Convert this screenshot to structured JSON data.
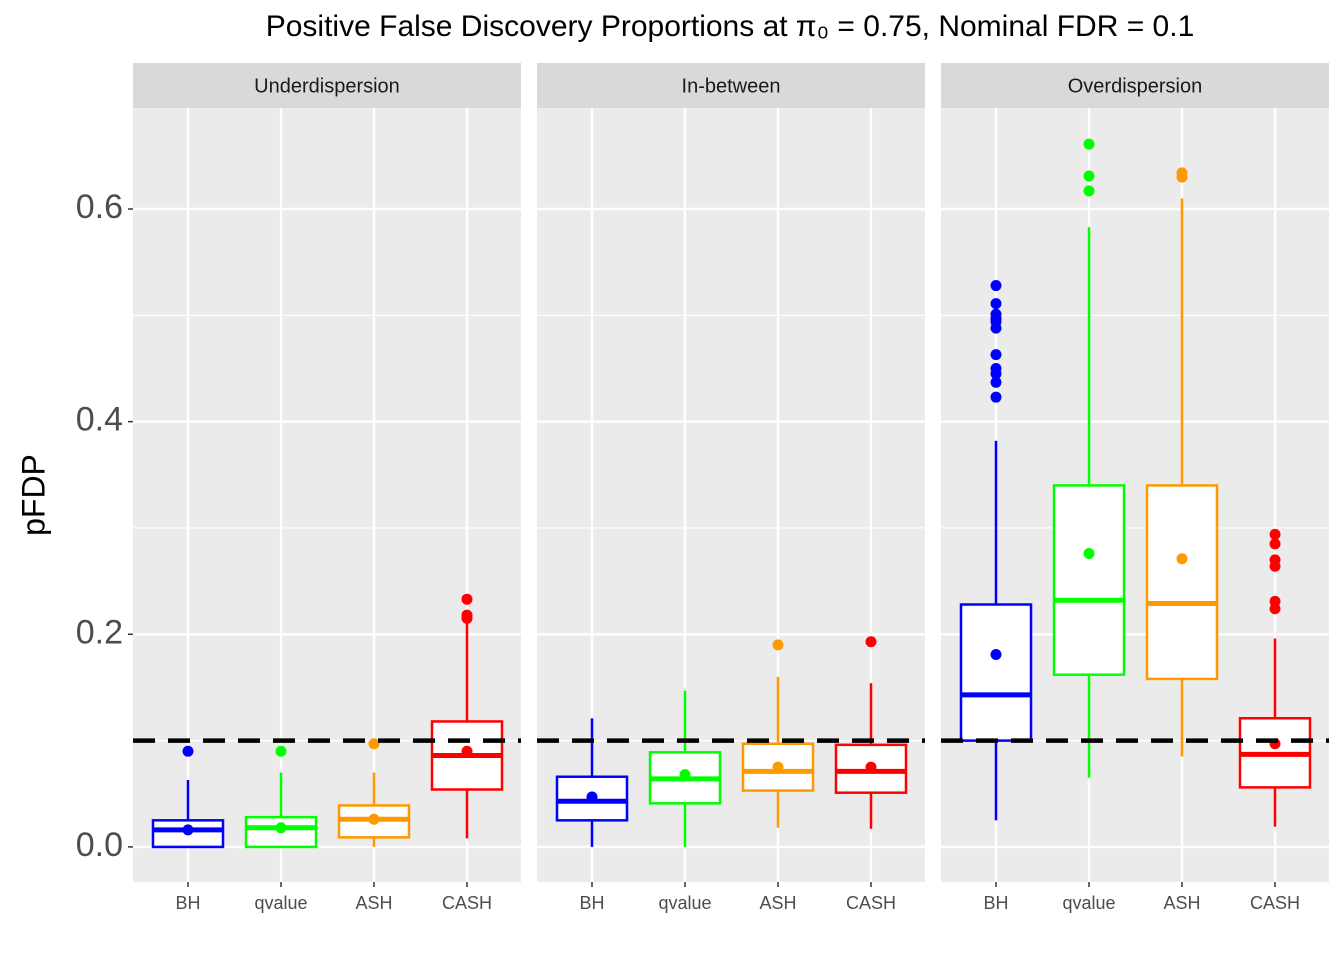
{
  "chart_data": {
    "type": "box",
    "title": "Positive False Discovery Proportions at π₀ = 0.75, Nominal FDR = 0.1",
    "ylabel": "pFDP",
    "ylim": [
      -0.033,
      0.695
    ],
    "yticks": [
      {
        "value": 0,
        "label": "0.0"
      },
      {
        "value": 0.2,
        "label": "0.2"
      },
      {
        "value": 0.4,
        "label": "0.4"
      },
      {
        "value": 0.6,
        "label": "0.6"
      }
    ],
    "minor_yticks": [
      0.1,
      0.3,
      0.5
    ],
    "grid": true,
    "hline": 0.1,
    "categories": [
      "BH",
      "qvalue",
      "ASH",
      "CASH"
    ],
    "colors": [
      "#0000ff",
      "#00ff00",
      "#ff9900",
      "#ff0000"
    ],
    "panels": [
      {
        "name": "Underdispersion",
        "boxes": [
          {
            "low": 0,
            "q1": 0,
            "median": 0.016,
            "q3": 0.025,
            "high": 0.063,
            "mean": 0.016,
            "outliers": [
              0.09
            ]
          },
          {
            "low": 0,
            "q1": 0,
            "median": 0.018,
            "q3": 0.028,
            "high": 0.07,
            "mean": 0.018,
            "outliers": [
              0.09
            ]
          },
          {
            "low": 0,
            "q1": 0.009,
            "median": 0.026,
            "q3": 0.039,
            "high": 0.07,
            "mean": 0.026,
            "outliers": [
              0.097
            ]
          },
          {
            "low": 0.008,
            "q1": 0.054,
            "median": 0.086,
            "q3": 0.118,
            "high": 0.213,
            "mean": 0.09,
            "outliers": [
              0.233,
              0.218,
              0.215
            ]
          }
        ]
      },
      {
        "name": "In-between",
        "boxes": [
          {
            "low": 0,
            "q1": 0.025,
            "median": 0.043,
            "q3": 0.066,
            "high": 0.121,
            "mean": 0.047,
            "outliers": []
          },
          {
            "low": 0,
            "q1": 0.041,
            "median": 0.064,
            "q3": 0.089,
            "high": 0.147,
            "mean": 0.068,
            "outliers": []
          },
          {
            "low": 0.018,
            "q1": 0.053,
            "median": 0.071,
            "q3": 0.097,
            "high": 0.16,
            "mean": 0.075,
            "outliers": [
              0.19
            ]
          },
          {
            "low": 0.017,
            "q1": 0.051,
            "median": 0.071,
            "q3": 0.096,
            "high": 0.154,
            "mean": 0.075,
            "outliers": [
              0.193
            ]
          }
        ]
      },
      {
        "name": "Overdispersion",
        "boxes": [
          {
            "low": 0.025,
            "q1": 0.1,
            "median": 0.143,
            "q3": 0.228,
            "high": 0.382,
            "mean": 0.181,
            "outliers": [
              0.528,
              0.511,
              0.501,
              0.497,
              0.494,
              0.488,
              0.463,
              0.45,
              0.445,
              0.437,
              0.423
            ]
          },
          {
            "low": 0.065,
            "q1": 0.162,
            "median": 0.232,
            "q3": 0.34,
            "high": 0.583,
            "mean": 0.276,
            "outliers": [
              0.661,
              0.631,
              0.617
            ]
          },
          {
            "low": 0.085,
            "q1": 0.158,
            "median": 0.229,
            "q3": 0.34,
            "high": 0.61,
            "mean": 0.271,
            "outliers": [
              0.634,
              0.63
            ]
          },
          {
            "low": 0.019,
            "q1": 0.056,
            "median": 0.087,
            "q3": 0.121,
            "high": 0.196,
            "mean": 0.097,
            "outliers": [
              0.294,
              0.285,
              0.27,
              0.264,
              0.231,
              0.224
            ]
          }
        ]
      }
    ]
  }
}
